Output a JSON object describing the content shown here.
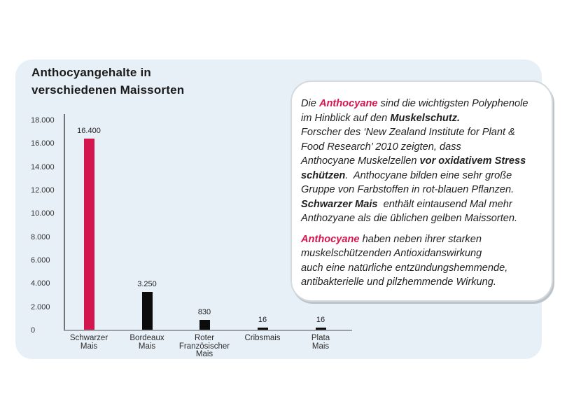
{
  "panel": {
    "title_line1": "Anthocyangehalte in",
    "title_line2": "verschiedenen Maissorten"
  },
  "colors": {
    "accent_pink": "#d3174e",
    "bar_black": "#0c0c0c",
    "panel_background": "#e8f0f7",
    "axis_gray": "#9aa0a5",
    "text_dark": "#1f1f1f"
  },
  "chart_data": {
    "type": "bar",
    "title": "Anthocyangehalte in verschiedenen Maissorten",
    "categories": [
      "Schwarzer Mais",
      "Bordeaux Mais",
      "Roter Französischer Mais",
      "Cribsmais",
      "Plata Mais"
    ],
    "category_lines": [
      [
        "Schwarzer",
        "Mais"
      ],
      [
        "Bordeaux",
        "Mais"
      ],
      [
        "Roter",
        "Französischer",
        "Mais"
      ],
      [
        "Cribsmais"
      ],
      [
        "Plata",
        "Mais"
      ]
    ],
    "values": [
      16400,
      3250,
      830,
      16,
      16
    ],
    "value_labels": [
      "16.400",
      "3.250",
      "830",
      "16",
      "16"
    ],
    "bar_colors": [
      "#d3174e",
      "#0c0c0c",
      "#0c0c0c",
      "#0c0c0c",
      "#0c0c0c"
    ],
    "xlabel": "",
    "ylabel": "",
    "ylim": [
      0,
      18000
    ],
    "yticks": [
      0,
      2000,
      4000,
      6000,
      8000,
      10000,
      12000,
      14000,
      16000,
      18000
    ],
    "ytick_labels": [
      "0",
      "2.000",
      "4.000",
      "6.000",
      "8.000",
      "10.000",
      "12.000",
      "14.000",
      "16.000",
      "18.000"
    ],
    "grid": false,
    "legend": false
  },
  "textbox": {
    "paragraphs": [
      {
        "lines": [
          [
            {
              "t": "Die ",
              "s": "r"
            },
            {
              "t": "Anthocyane",
              "s": "a"
            },
            {
              "t": " sind die wichtigsten Polyphenole",
              "s": "r"
            }
          ],
          [
            {
              "t": "im Hinblick auf den ",
              "s": "r"
            },
            {
              "t": "Muskelschutz.",
              "s": "b"
            }
          ],
          [
            {
              "t": "Forscher des ‘New Zealand Institute for Plant &",
              "s": "r"
            }
          ],
          [
            {
              "t": "Food Research’ 2010 zeigten, dass",
              "s": "r"
            }
          ],
          [
            {
              "t": "Anthocyane Muskelzellen ",
              "s": "r"
            },
            {
              "t": "vor oxidativem Stress",
              "s": "b"
            }
          ],
          [
            {
              "t": "schützen",
              "s": "b"
            },
            {
              "t": ".  Anthocyane bilden eine sehr große",
              "s": "r"
            }
          ],
          [
            {
              "t": "Gruppe von Farbstoffen in rot-blauen Pflanzen.",
              "s": "r"
            }
          ],
          [
            {
              "t": "Schwarzer Mais",
              "s": "b"
            },
            {
              "t": "  enthält eintausend Mal mehr",
              "s": "r"
            }
          ],
          [
            {
              "t": "Anthozyane als die üblichen gelben Maissorten.",
              "s": "r"
            }
          ]
        ]
      },
      {
        "lines": [
          [
            {
              "t": "Anthocyane",
              "s": "a"
            },
            {
              "t": " haben neben ihrer starken",
              "s": "r"
            }
          ],
          [
            {
              "t": "muskelschützenden Antioxidanswirkung",
              "s": "r"
            }
          ],
          [
            {
              "t": "auch eine natürliche entzündungshemmende,",
              "s": "r"
            }
          ],
          [
            {
              "t": "antibakterielle und pilzhemmende Wirkung.",
              "s": "r"
            }
          ]
        ]
      }
    ]
  }
}
